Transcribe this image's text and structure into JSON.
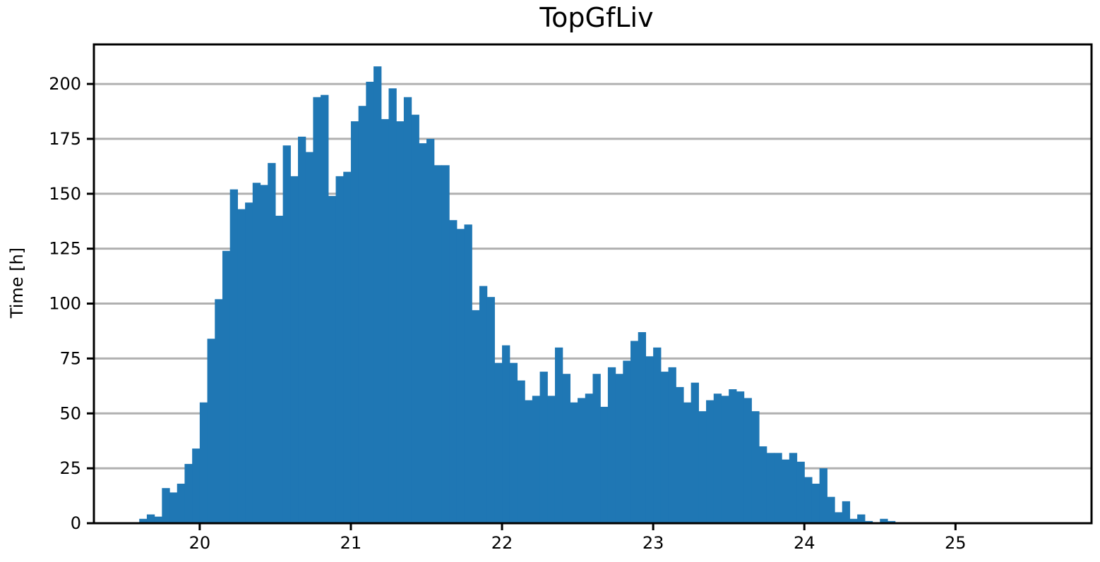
{
  "chart_data": {
    "type": "bar",
    "title": "TopGfLiv",
    "xlabel": "",
    "ylabel": "Time [h]",
    "xlim": [
      19.3,
      25.9
    ],
    "ylim": [
      0,
      218
    ],
    "xticks": [
      20,
      21,
      22,
      23,
      24,
      25
    ],
    "yticks": [
      0,
      25,
      50,
      75,
      100,
      125,
      150,
      175,
      200
    ],
    "grid": "y",
    "legend": "none",
    "bar_color": "#1f77b4",
    "bin_start": 19.6,
    "bin_width": 0.05,
    "values": [
      2,
      4,
      3,
      16,
      14,
      18,
      27,
      34,
      55,
      84,
      102,
      124,
      152,
      143,
      146,
      155,
      154,
      164,
      140,
      172,
      158,
      176,
      169,
      194,
      195,
      149,
      158,
      160,
      183,
      190,
      201,
      208,
      184,
      198,
      183,
      194,
      186,
      173,
      175,
      163,
      163,
      138,
      134,
      136,
      97,
      108,
      103,
      73,
      81,
      73,
      65,
      56,
      58,
      69,
      58,
      80,
      68,
      55,
      57,
      59,
      68,
      53,
      71,
      68,
      74,
      83,
      87,
      76,
      80,
      69,
      71,
      62,
      55,
      64,
      51,
      56,
      59,
      58,
      61,
      60,
      57,
      51,
      35,
      32,
      32,
      29,
      32,
      28,
      21,
      18,
      25,
      12,
      5,
      10,
      2,
      4,
      1,
      0,
      2,
      1
    ]
  }
}
